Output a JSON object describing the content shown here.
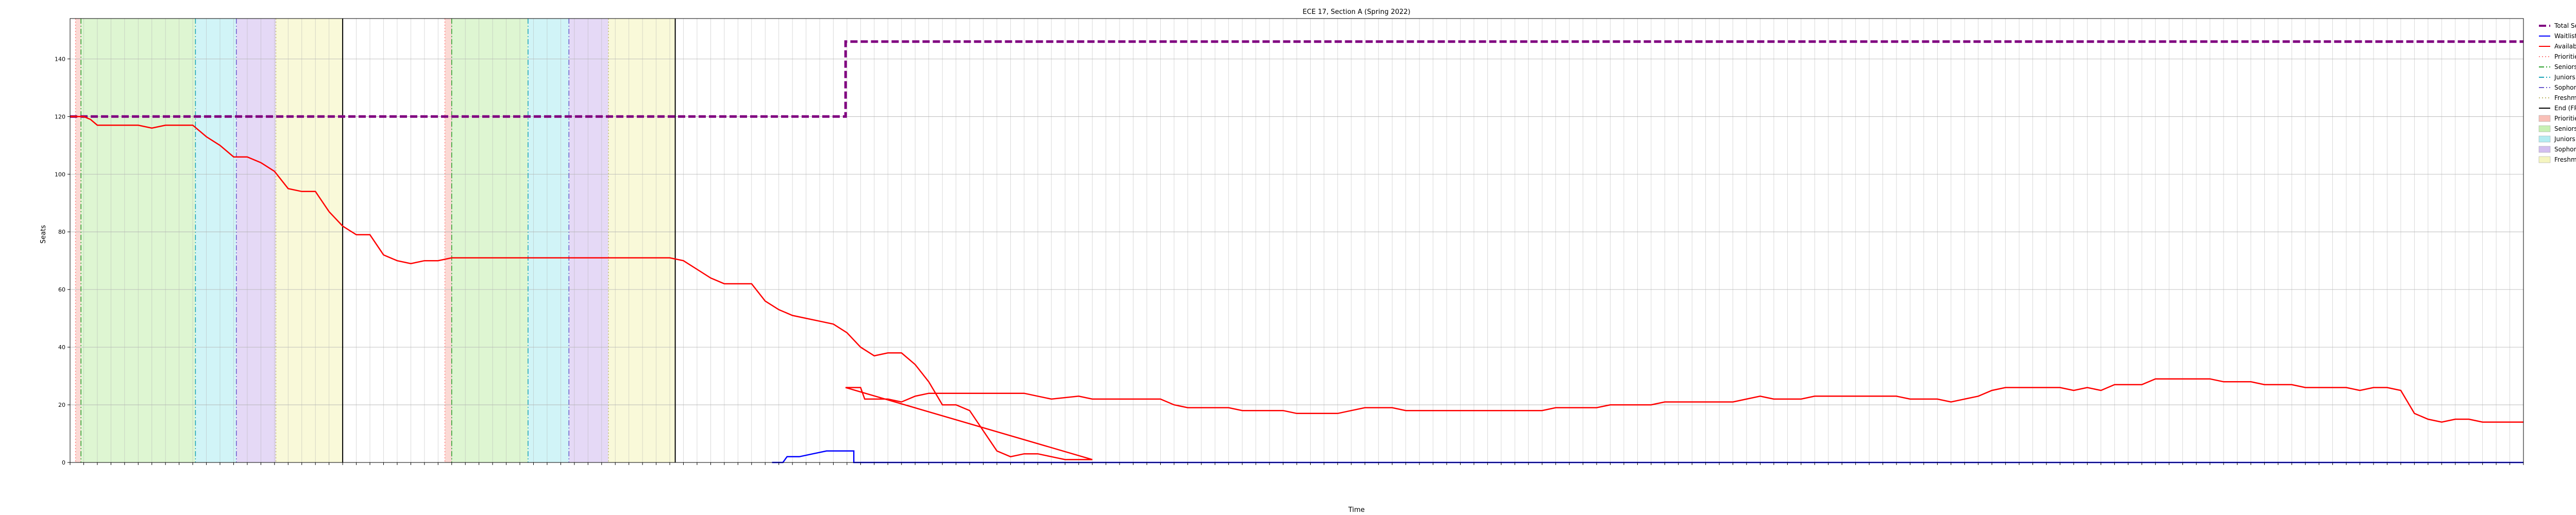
{
  "chart_data": {
    "type": "line",
    "title": "ECE 17, Section A (Spring 2022)",
    "xlabel": "Time",
    "ylabel": "Seats",
    "ylim": [
      0,
      154
    ],
    "yticks": [
      0,
      20,
      40,
      60,
      80,
      100,
      120,
      140
    ],
    "grid": true,
    "legend_placement": "outside-right",
    "x_count": 180,
    "series": [
      {
        "name": "Total Seats",
        "color": "#800080",
        "style": "dashed",
        "points": [
          [
            0,
            120
          ],
          [
            56.9,
            120
          ],
          [
            56.9,
            146
          ],
          [
            180,
            146
          ]
        ]
      },
      {
        "name": "Waitlist",
        "color": "#0000ff",
        "style": "solid",
        "points": [
          [
            51.5,
            0
          ],
          [
            52.3,
            0
          ],
          [
            52.6,
            2
          ],
          [
            53.5,
            2
          ],
          [
            54.5,
            3
          ],
          [
            55.5,
            4
          ],
          [
            57.5,
            4
          ],
          [
            57.5,
            0
          ],
          [
            180,
            0
          ]
        ]
      },
      {
        "name": "Available",
        "color": "#ff0000",
        "style": "solid",
        "points": [
          [
            0,
            120
          ],
          [
            1,
            120
          ],
          [
            1.5,
            119
          ],
          [
            2,
            117
          ],
          [
            5,
            117
          ],
          [
            6,
            116
          ],
          [
            7,
            117
          ],
          [
            9,
            117
          ],
          [
            10,
            113
          ],
          [
            11,
            110
          ],
          [
            12,
            106
          ],
          [
            13,
            106
          ],
          [
            14,
            104
          ],
          [
            15,
            101
          ],
          [
            16,
            95
          ],
          [
            17,
            94
          ],
          [
            18,
            94
          ],
          [
            19,
            87
          ],
          [
            20,
            82
          ],
          [
            21,
            79
          ],
          [
            22,
            79
          ],
          [
            23,
            72
          ],
          [
            24,
            70
          ],
          [
            25,
            69
          ],
          [
            26,
            70
          ],
          [
            27,
            70
          ],
          [
            28,
            71
          ],
          [
            32,
            71
          ],
          [
            40,
            71
          ],
          [
            44,
            71
          ],
          [
            45,
            70
          ],
          [
            46,
            67
          ],
          [
            47,
            64
          ],
          [
            48,
            62
          ],
          [
            50,
            62
          ],
          [
            51,
            56
          ],
          [
            52,
            53
          ],
          [
            53,
            51
          ],
          [
            54,
            50
          ],
          [
            55,
            49
          ],
          [
            56,
            48
          ],
          [
            57,
            45
          ],
          [
            58,
            40
          ],
          [
            59,
            37
          ],
          [
            60,
            38
          ],
          [
            61,
            38
          ],
          [
            62,
            34
          ],
          [
            63,
            28
          ],
          [
            64,
            20
          ],
          [
            65,
            20
          ],
          [
            66,
            18
          ],
          [
            67,
            11
          ],
          [
            68,
            4
          ],
          [
            69,
            2
          ],
          [
            70,
            3
          ],
          [
            71,
            3
          ],
          [
            72,
            2
          ],
          [
            73,
            1
          ],
          [
            75,
            1
          ],
          [
            56.9,
            26
          ],
          [
            57.2,
            26
          ],
          [
            58,
            26
          ],
          [
            58.3,
            22
          ],
          [
            60,
            22
          ],
          [
            61,
            21
          ],
          [
            62,
            23
          ],
          [
            63,
            24
          ],
          [
            70,
            24
          ],
          [
            71,
            23
          ],
          [
            72,
            22
          ],
          [
            74,
            23
          ],
          [
            75,
            22
          ],
          [
            80,
            22
          ],
          [
            81,
            20
          ],
          [
            82,
            19
          ],
          [
            85,
            19
          ],
          [
            86,
            18
          ],
          [
            89,
            18
          ],
          [
            90,
            17
          ],
          [
            93,
            17
          ],
          [
            94,
            18
          ],
          [
            95,
            19
          ],
          [
            97,
            19
          ],
          [
            98,
            18
          ],
          [
            100,
            18
          ],
          [
            105,
            18
          ],
          [
            108,
            18
          ],
          [
            109,
            19
          ],
          [
            112,
            19
          ],
          [
            113,
            20
          ],
          [
            116,
            20
          ],
          [
            117,
            21
          ],
          [
            122,
            21
          ],
          [
            123,
            22
          ],
          [
            124,
            23
          ],
          [
            125,
            22
          ],
          [
            127,
            22
          ],
          [
            128,
            23
          ],
          [
            134,
            23
          ],
          [
            135,
            22
          ],
          [
            137,
            22
          ],
          [
            138,
            21
          ],
          [
            139,
            22
          ],
          [
            140,
            23
          ],
          [
            141,
            25
          ],
          [
            142,
            26
          ],
          [
            146,
            26
          ],
          [
            147,
            25
          ],
          [
            148,
            26
          ],
          [
            149,
            25
          ],
          [
            150,
            27
          ],
          [
            152,
            27
          ],
          [
            153,
            29
          ],
          [
            157,
            29
          ],
          [
            158,
            28
          ],
          [
            160,
            28
          ],
          [
            161,
            27
          ],
          [
            163,
            27
          ],
          [
            164,
            26
          ],
          [
            167,
            26
          ],
          [
            168,
            25
          ],
          [
            169,
            26
          ],
          [
            170,
            26
          ],
          [
            171,
            25
          ],
          [
            172,
            17
          ],
          [
            173,
            15
          ],
          [
            174,
            14
          ],
          [
            175,
            15
          ],
          [
            176,
            15
          ],
          [
            177,
            14
          ],
          [
            180,
            14
          ]
        ]
      }
    ],
    "phase_markers": [
      {
        "name": "Priorities Start",
        "color": "#ff7f7f",
        "style": "dotted"
      },
      {
        "name": "Seniors Start",
        "color": "#2ca02c",
        "style": "dashdot"
      },
      {
        "name": "Juniors Start",
        "color": "#17a2b8",
        "style": "dashdot"
      },
      {
        "name": "Sophomores Start",
        "color": "#6a5acd",
        "style": "dashdot"
      },
      {
        "name": "Freshmen Start",
        "color": "#bdb76b",
        "style": "dotted"
      },
      {
        "name": "End (FP/SP)",
        "color": "#000000",
        "style": "solid"
      }
    ],
    "phase_shading": [
      {
        "name": "Priorities Start",
        "color": "#f9c0b8"
      },
      {
        "name": "Seniors Start",
        "color": "#c8f0b4"
      },
      {
        "name": "Juniors Start",
        "color": "#b3ecf1"
      },
      {
        "name": "Sophomores Start",
        "color": "#d3bff0"
      },
      {
        "name": "Freshmen Start",
        "color": "#f5f5c0"
      }
    ],
    "phases": [
      {
        "priorities": 0.4,
        "seniors": 0.8,
        "juniors": 9.2,
        "sophomores": 12.2,
        "freshmen": 15.1,
        "end": 20.0
      },
      {
        "priorities": 27.5,
        "seniors": 28.0,
        "juniors": 33.6,
        "sophomores": 36.6,
        "freshmen": 39.5,
        "end": 44.4
      }
    ],
    "legend_entries": [
      {
        "label": "Total Seats",
        "kind": "line",
        "color": "#800080",
        "style": "dashed",
        "bold": true
      },
      {
        "label": "Waitlist",
        "kind": "line",
        "color": "#0000ff",
        "style": "solid"
      },
      {
        "label": "Available",
        "kind": "line",
        "color": "#ff0000",
        "style": "solid"
      },
      {
        "label": "Priorities Start",
        "kind": "line",
        "color": "#ff7f7f",
        "style": "dotted"
      },
      {
        "label": "Seniors Start",
        "kind": "line",
        "color": "#2ca02c",
        "style": "dashdot"
      },
      {
        "label": "Juniors Start",
        "kind": "line",
        "color": "#17a2b8",
        "style": "dashdot"
      },
      {
        "label": "Sophomores Start",
        "kind": "line",
        "color": "#6a5acd",
        "style": "dashdot"
      },
      {
        "label": "Freshmen Start",
        "kind": "line",
        "color": "#bdb76b",
        "style": "dotted"
      },
      {
        "label": "End (FP/SP)",
        "kind": "line",
        "color": "#000000",
        "style": "solid"
      },
      {
        "label": "Priorities Start",
        "kind": "patch",
        "color": "#f9c0b8"
      },
      {
        "label": "Seniors Start",
        "kind": "patch",
        "color": "#c8f0b4"
      },
      {
        "label": "Juniors Start",
        "kind": "patch",
        "color": "#b3ecf1"
      },
      {
        "label": "Sophomores Start",
        "kind": "patch",
        "color": "#d3bff0"
      },
      {
        "label": "Freshmen Start",
        "kind": "patch",
        "color": "#f5f5c0"
      }
    ]
  }
}
